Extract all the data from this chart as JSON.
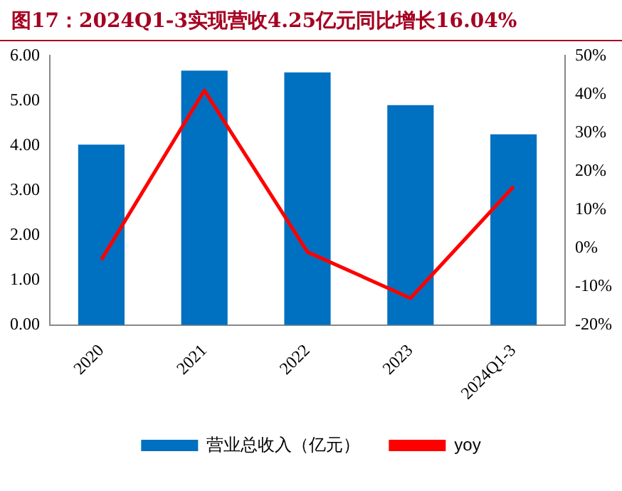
{
  "chart_data": {
    "type": "bar",
    "title": "图17：2024Q1-3实现营收4.25亿元同比增长16.04%",
    "categories": [
      "2020",
      "2021",
      "2022",
      "2023",
      "2024Q1-3"
    ],
    "series": [
      {
        "name": "营业总收入（亿元）",
        "color": "#0070c0",
        "values": [
          4.02,
          5.67,
          5.63,
          4.9,
          4.25
        ]
      },
      {
        "name": "yoy",
        "type": "line",
        "axis": "y2",
        "color": "#ff0000",
        "values": [
          -3,
          41,
          -1,
          -13,
          16
        ]
      }
    ],
    "ylim": [
      0,
      6
    ],
    "yticks": [
      {
        "value": 0,
        "label": "0.00"
      },
      {
        "value": 1,
        "label": "1.00"
      },
      {
        "value": 2,
        "label": "2.00"
      },
      {
        "value": 3,
        "label": "3.00"
      },
      {
        "value": 4,
        "label": "4.00"
      },
      {
        "value": 5,
        "label": "5.00"
      },
      {
        "value": 6,
        "label": "6.00"
      }
    ],
    "y2lim": [
      -20,
      50
    ],
    "y2ticks": [
      {
        "value": -20,
        "label": "-20%"
      },
      {
        "value": -10,
        "label": "-10%"
      },
      {
        "value": 0,
        "label": "0%"
      },
      {
        "value": 10,
        "label": "10%"
      },
      {
        "value": 20,
        "label": "20%"
      },
      {
        "value": 30,
        "label": "30%"
      },
      {
        "value": 40,
        "label": "40%"
      },
      {
        "value": 50,
        "label": "50%"
      }
    ],
    "grid": false,
    "legend": "bottom",
    "marker": "none"
  }
}
